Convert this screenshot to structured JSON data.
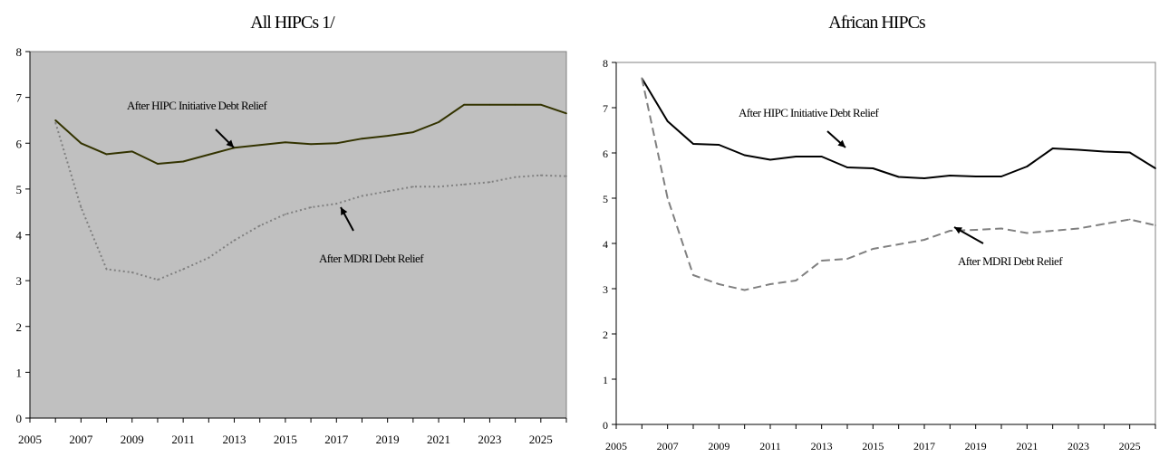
{
  "chart_data": [
    {
      "type": "line",
      "title": "All HIPCs  1/",
      "xlabel": "",
      "ylabel": "",
      "ylim": [
        0,
        8
      ],
      "yticks": [
        "0",
        "1",
        "2",
        "3",
        "4",
        "5",
        "6",
        "7",
        "8"
      ],
      "xlim": [
        2005,
        2026
      ],
      "xticks": [
        "2005",
        "2007",
        "2009",
        "2011",
        "2013",
        "2015",
        "2017",
        "2019",
        "2021",
        "2023",
        "2025"
      ],
      "plot_background": "#c0c0c0",
      "grid": false,
      "x": [
        2006,
        2007,
        2008,
        2009,
        2010,
        2011,
        2012,
        2013,
        2014,
        2015,
        2016,
        2017,
        2018,
        2019,
        2020,
        2021,
        2022,
        2023,
        2024,
        2025,
        2026
      ],
      "series": [
        {
          "name": "After HIPC Initiative Debt Relief",
          "color": "#333300",
          "style": "solid",
          "values": [
            6.5,
            6.0,
            5.76,
            5.82,
            5.55,
            5.6,
            5.75,
            5.9,
            5.96,
            6.02,
            5.98,
            6.0,
            6.1,
            6.16,
            6.24,
            6.46,
            6.84,
            6.84,
            6.84,
            6.84,
            6.65
          ]
        },
        {
          "name": "After MDRI Debt Relief",
          "color": "#808080",
          "style": "dotted",
          "values": [
            6.45,
            4.6,
            3.25,
            3.18,
            3.02,
            3.25,
            3.5,
            3.88,
            4.2,
            4.45,
            4.6,
            4.68,
            4.85,
            4.95,
            5.05,
            5.05,
            5.1,
            5.15,
            5.26,
            5.3,
            5.28
          ]
        }
      ],
      "annotations": [
        {
          "text": "After HIPC Initiative Debt Relief",
          "points_to": "After HIPC Initiative Debt Relief"
        },
        {
          "text": "After MDRI Debt Relief",
          "points_to": "After MDRI Debt Relief"
        }
      ]
    },
    {
      "type": "line",
      "title": "African HIPCs",
      "xlabel": "",
      "ylabel": "",
      "ylim": [
        0,
        8
      ],
      "yticks": [
        "0",
        "1",
        "2",
        "3",
        "4",
        "5",
        "6",
        "7",
        "8"
      ],
      "xlim": [
        2005,
        2026
      ],
      "xticks": [
        "2005",
        "2007",
        "2009",
        "2011",
        "2013",
        "2015",
        "2017",
        "2019",
        "2021",
        "2023",
        "2025"
      ],
      "plot_background": "#ffffff",
      "grid": false,
      "x": [
        2006,
        2007,
        2008,
        2009,
        2010,
        2011,
        2012,
        2013,
        2014,
        2015,
        2016,
        2017,
        2018,
        2019,
        2020,
        2021,
        2022,
        2023,
        2024,
        2025,
        2026
      ],
      "series": [
        {
          "name": "After HIPC Initiative Debt Relief",
          "color": "#000000",
          "style": "solid",
          "values": [
            7.65,
            6.7,
            6.2,
            6.18,
            5.95,
            5.85,
            5.92,
            5.92,
            5.68,
            5.66,
            5.47,
            5.44,
            5.5,
            5.48,
            5.48,
            5.7,
            6.1,
            6.07,
            6.03,
            6.01,
            5.66
          ]
        },
        {
          "name": "After MDRI Debt Relief",
          "color": "#808080",
          "style": "dashed",
          "values": [
            7.65,
            5.0,
            3.3,
            3.1,
            2.97,
            3.1,
            3.18,
            3.62,
            3.66,
            3.88,
            3.98,
            4.08,
            4.28,
            4.3,
            4.33,
            4.23,
            4.28,
            4.33,
            4.43,
            4.53,
            4.4
          ]
        }
      ],
      "annotations": [
        {
          "text": "After HIPC Initiative Debt Relief",
          "points_to": "After HIPC Initiative Debt Relief"
        },
        {
          "text": "After MDRI Debt Relief",
          "points_to": "After MDRI Debt Relief"
        }
      ]
    }
  ]
}
